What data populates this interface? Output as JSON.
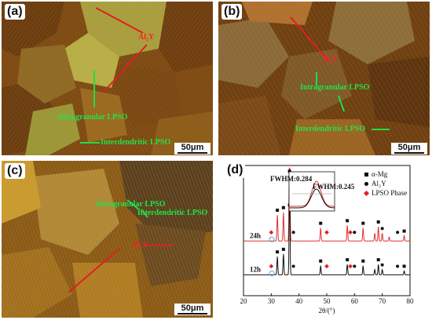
{
  "panels": {
    "a": {
      "label": "(a)",
      "annotations": {
        "red": "Al₂Y",
        "green1": "Intragranular LPSO",
        "green2": "Interdendritic LPSO"
      },
      "scale": "50μm"
    },
    "b": {
      "label": "(b)",
      "annotations": {
        "red": "Al₂Y",
        "green1": "Intragranular LPSO",
        "green2": "Interdendritic LPSO"
      },
      "scale": "50μm"
    },
    "c": {
      "label": "(c)",
      "annotations": {
        "red": "Al₂Y",
        "green1": "Intragranular LPSO",
        "green2": "Interdendritic LPSO"
      },
      "scale": "50μm"
    },
    "d": {
      "label": "(d)"
    }
  },
  "chart_data": {
    "type": "line",
    "xlabel": "2θ/(°)",
    "ylabel": "",
    "xlim": [
      20,
      80
    ],
    "xticks": [
      20,
      30,
      40,
      50,
      60,
      70,
      80
    ],
    "legend": [
      {
        "marker": "square",
        "label": "α-Mg",
        "color": "#000000"
      },
      {
        "marker": "circle",
        "label": "Al₂Y",
        "color": "#000000"
      },
      {
        "marker": "diamond",
        "label": "LPSO Phase",
        "color": "#e02020"
      }
    ],
    "legend_position": "top-right",
    "series": [
      {
        "name": "24h",
        "color": "#e03030",
        "baseline": 0.42,
        "peaks": [
          [
            32.2,
            0.2
          ],
          [
            34.4,
            0.22
          ],
          [
            36.6,
            0.88
          ],
          [
            47.8,
            0.1
          ],
          [
            57.4,
            0.12
          ],
          [
            63.1,
            0.1
          ],
          [
            67.3,
            0.06
          ],
          [
            68.6,
            0.11
          ],
          [
            70.0,
            0.06
          ],
          [
            72.5,
            0.03
          ],
          [
            77.9,
            0.04
          ]
        ]
      },
      {
        "name": "12h",
        "color": "#111111",
        "baseline": 0.16,
        "peaks": [
          [
            32.2,
            0.14
          ],
          [
            34.4,
            0.16
          ],
          [
            36.6,
            0.68
          ],
          [
            47.8,
            0.07
          ],
          [
            57.4,
            0.08
          ],
          [
            63.1,
            0.07
          ],
          [
            67.3,
            0.04
          ],
          [
            68.6,
            0.08
          ],
          [
            70.0,
            0.04
          ],
          [
            77.9,
            0.03
          ]
        ]
      }
    ],
    "inset": {
      "labels": [
        "FWHM:0.284",
        "FWHM:0.245"
      ]
    }
  }
}
